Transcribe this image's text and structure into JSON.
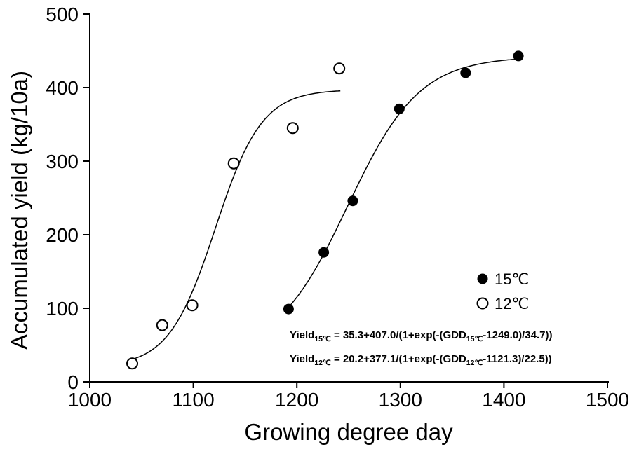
{
  "chart_data": {
    "type": "scatter",
    "title": "",
    "xlabel": "Growing degree day",
    "ylabel": "Accumulated yield (kg/10a)",
    "xlim": [
      1000,
      1500
    ],
    "ylim": [
      0,
      500
    ],
    "xticks": [
      1000,
      1100,
      1200,
      1300,
      1400,
      1500
    ],
    "yticks": [
      0,
      100,
      200,
      300,
      400,
      500
    ],
    "grid": false,
    "background": "#ffffff",
    "axis_color": "#000000",
    "series": [
      {
        "name": "15℃",
        "marker": "filled-circle",
        "color": "#000000",
        "points": [
          [
            1192,
            99
          ],
          [
            1226,
            176
          ],
          [
            1254,
            246
          ],
          [
            1299,
            371
          ],
          [
            1363,
            420
          ],
          [
            1414,
            443
          ]
        ],
        "fit": {
          "type": "logistic",
          "y0": 35.3,
          "a": 407.0,
          "x0": 1249.0,
          "b": 34.7,
          "x_range": [
            1188,
            1416
          ]
        }
      },
      {
        "name": "12℃",
        "marker": "open-circle",
        "color": "#000000",
        "points": [
          [
            1041,
            25
          ],
          [
            1070,
            77
          ],
          [
            1099,
            104
          ],
          [
            1139,
            297
          ],
          [
            1196,
            345
          ],
          [
            1241,
            426
          ]
        ],
        "fit": {
          "type": "logistic",
          "y0": 20.2,
          "a": 377.1,
          "x0": 1121.3,
          "b": 22.5,
          "x_range": [
            1040,
            1243
          ]
        }
      }
    ],
    "legend": {
      "position": "inside-right",
      "entries": [
        "15℃",
        "12℃"
      ]
    },
    "annotations": [
      {
        "segments": [
          {
            "t": "Yield"
          },
          {
            "t": "15℃",
            "sub": true
          },
          {
            "t": " = 35.3+407.0/(1+exp(-(GDD"
          },
          {
            "t": "15℃",
            "sub": true
          },
          {
            "t": "-1249.0)/34.7))"
          }
        ]
      },
      {
        "segments": [
          {
            "t": "Yield"
          },
          {
            "t": "12℃",
            "sub": true
          },
          {
            "t": " = 20.2+377.1/(1+exp(-(GDD"
          },
          {
            "t": "12℃",
            "sub": true
          },
          {
            "t": "-1121.3)/22.5))"
          }
        ]
      }
    ]
  }
}
